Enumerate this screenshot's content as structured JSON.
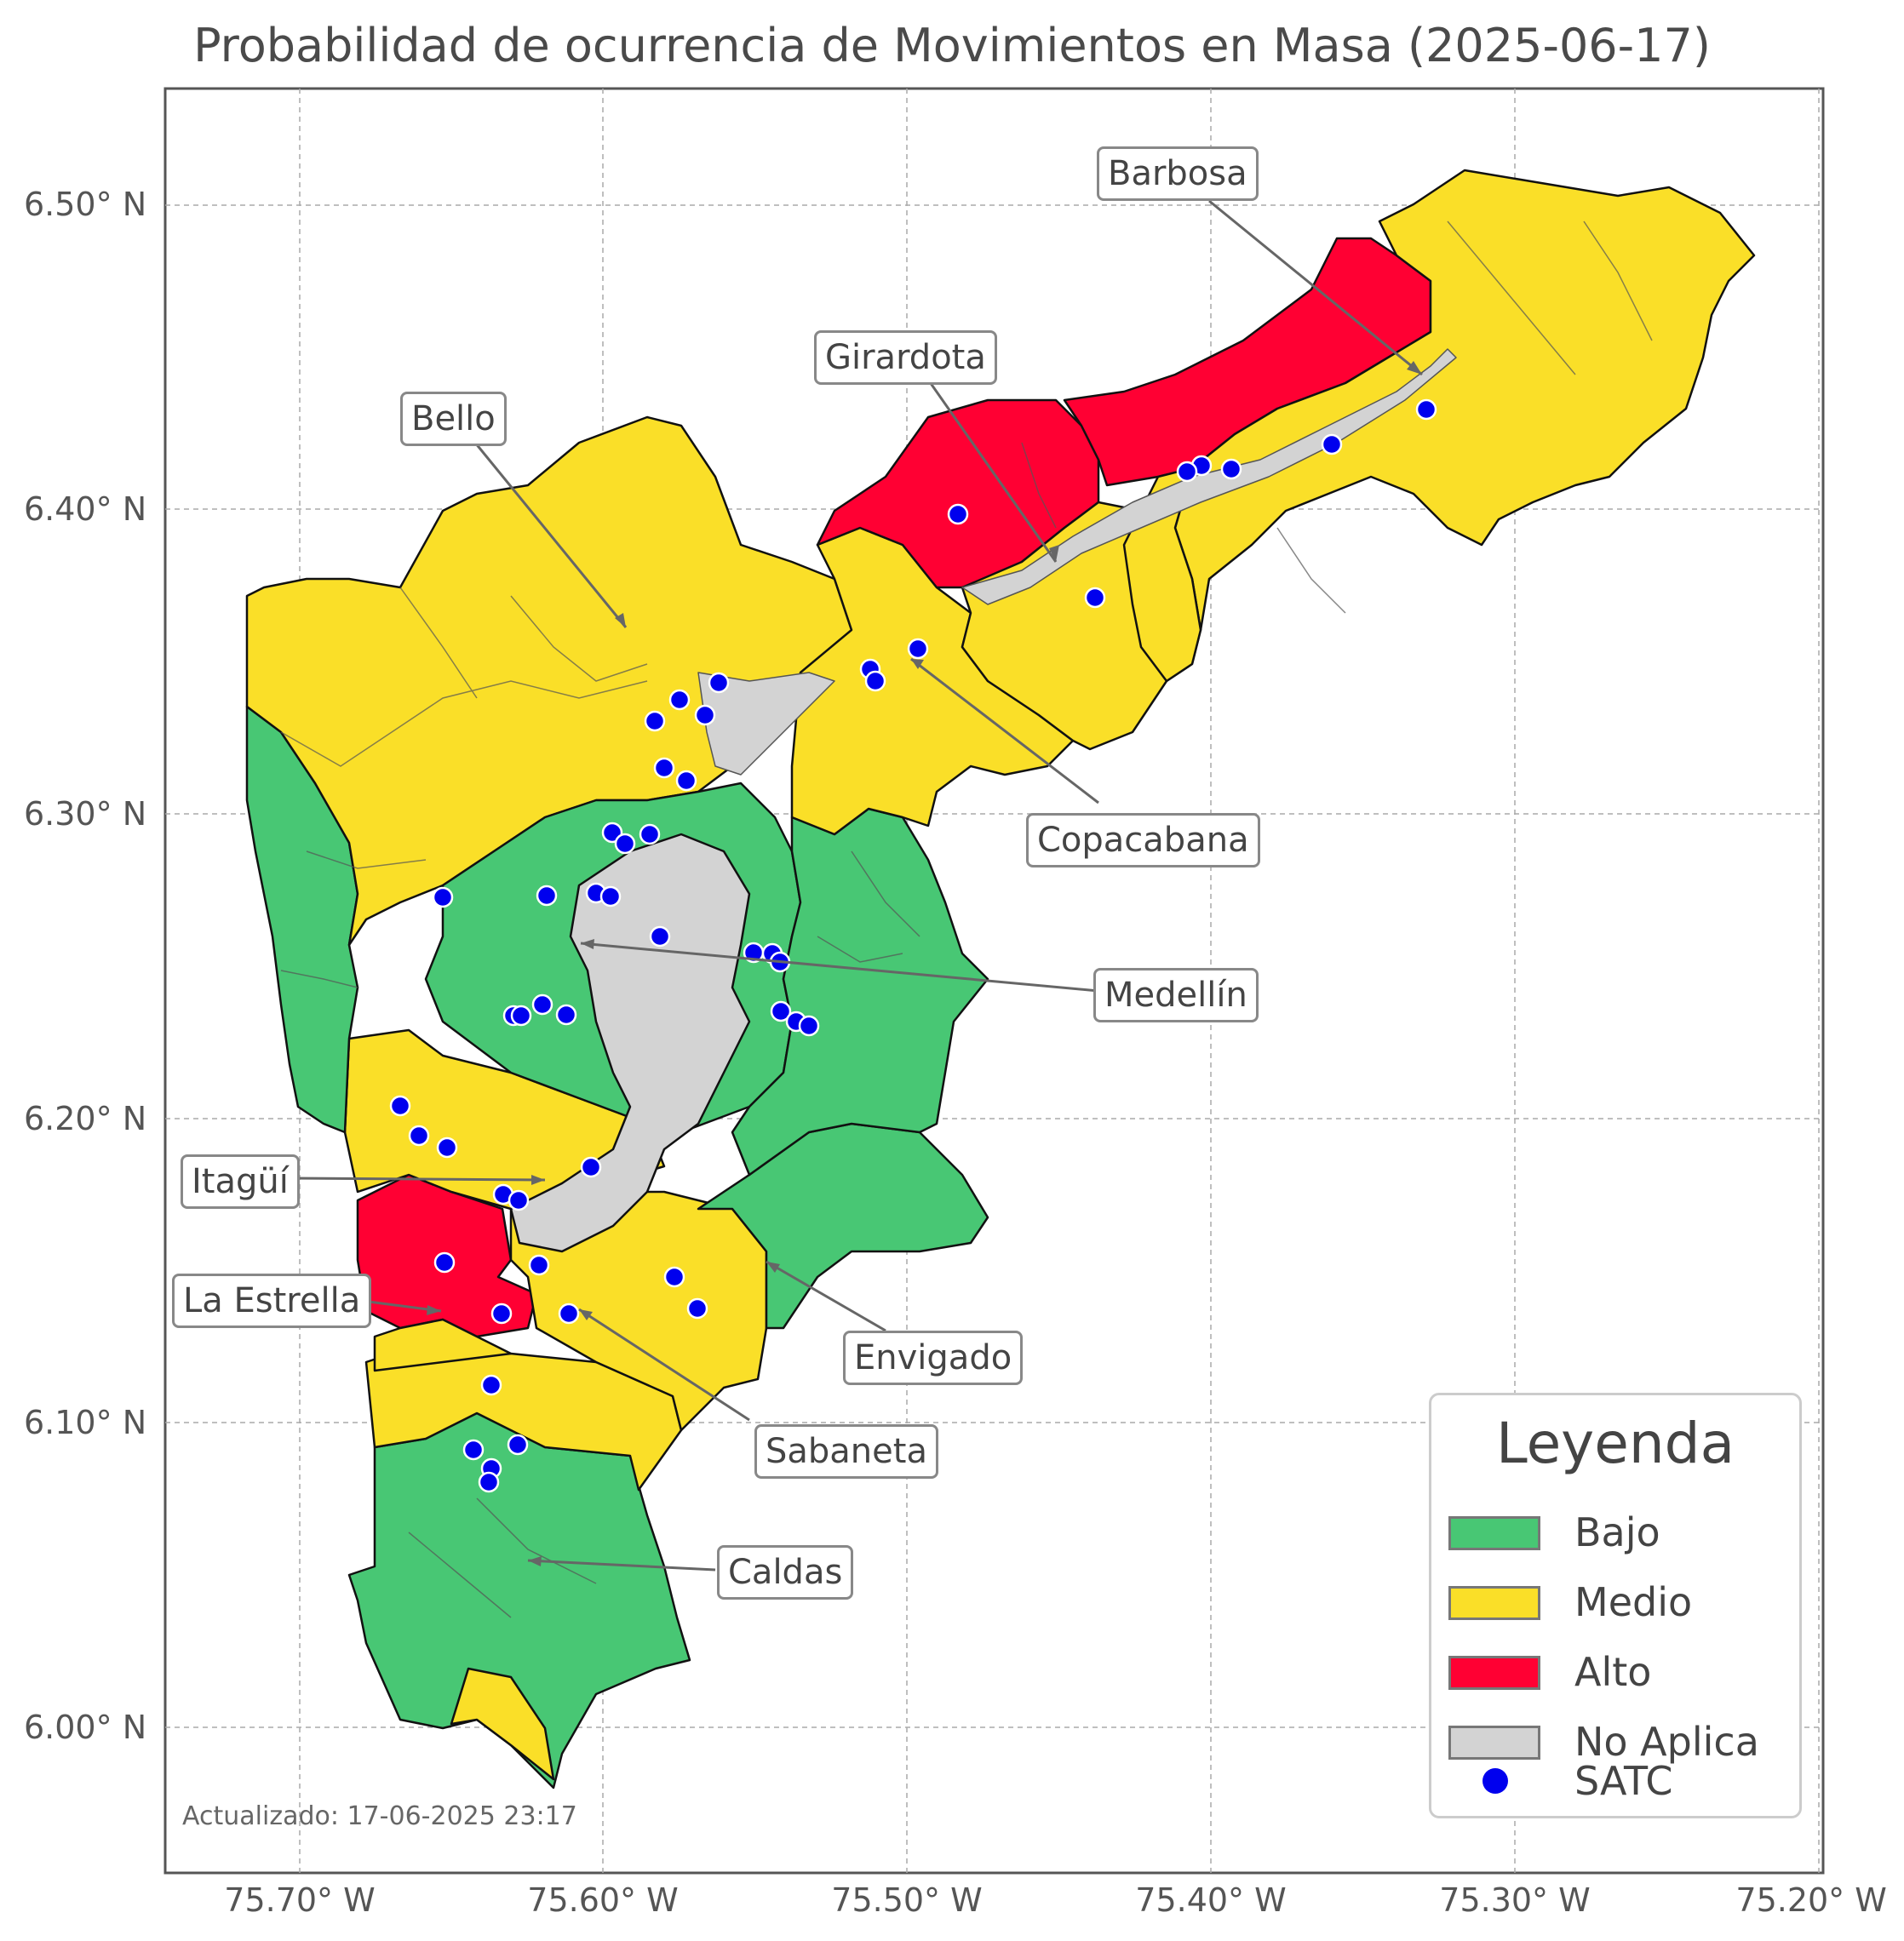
{
  "title": "Probabilidad de ocurrencia de Movimientos en Masa (2025-06-17)",
  "y_ticks": [
    "6.50° N",
    "6.40° N",
    "6.30° N",
    "6.20° N",
    "6.10° N",
    "6.00° N"
  ],
  "x_ticks": [
    "75.70° W",
    "75.60° W",
    "75.50° W",
    "75.40° W",
    "75.30° W",
    "75.20° W"
  ],
  "municipalities": [
    "Barbosa",
    "Girardota",
    "Bello",
    "Copacabana",
    "Medellín",
    "Itagüí",
    "La Estrella",
    "Envigado",
    "Sabaneta",
    "Caldas"
  ],
  "legend": {
    "title": "Leyenda",
    "items": [
      {
        "label": "Bajo",
        "color": "#48c774"
      },
      {
        "label": "Medio",
        "color": "#fadf28"
      },
      {
        "label": "Alto",
        "color": "#ff0033"
      },
      {
        "label": "No Aplica",
        "color": "#d3d3d3"
      },
      {
        "label": "SATC",
        "color": "#0000ee"
      }
    ]
  },
  "updated": "Actualizado: 17-06-2025 23:17"
}
